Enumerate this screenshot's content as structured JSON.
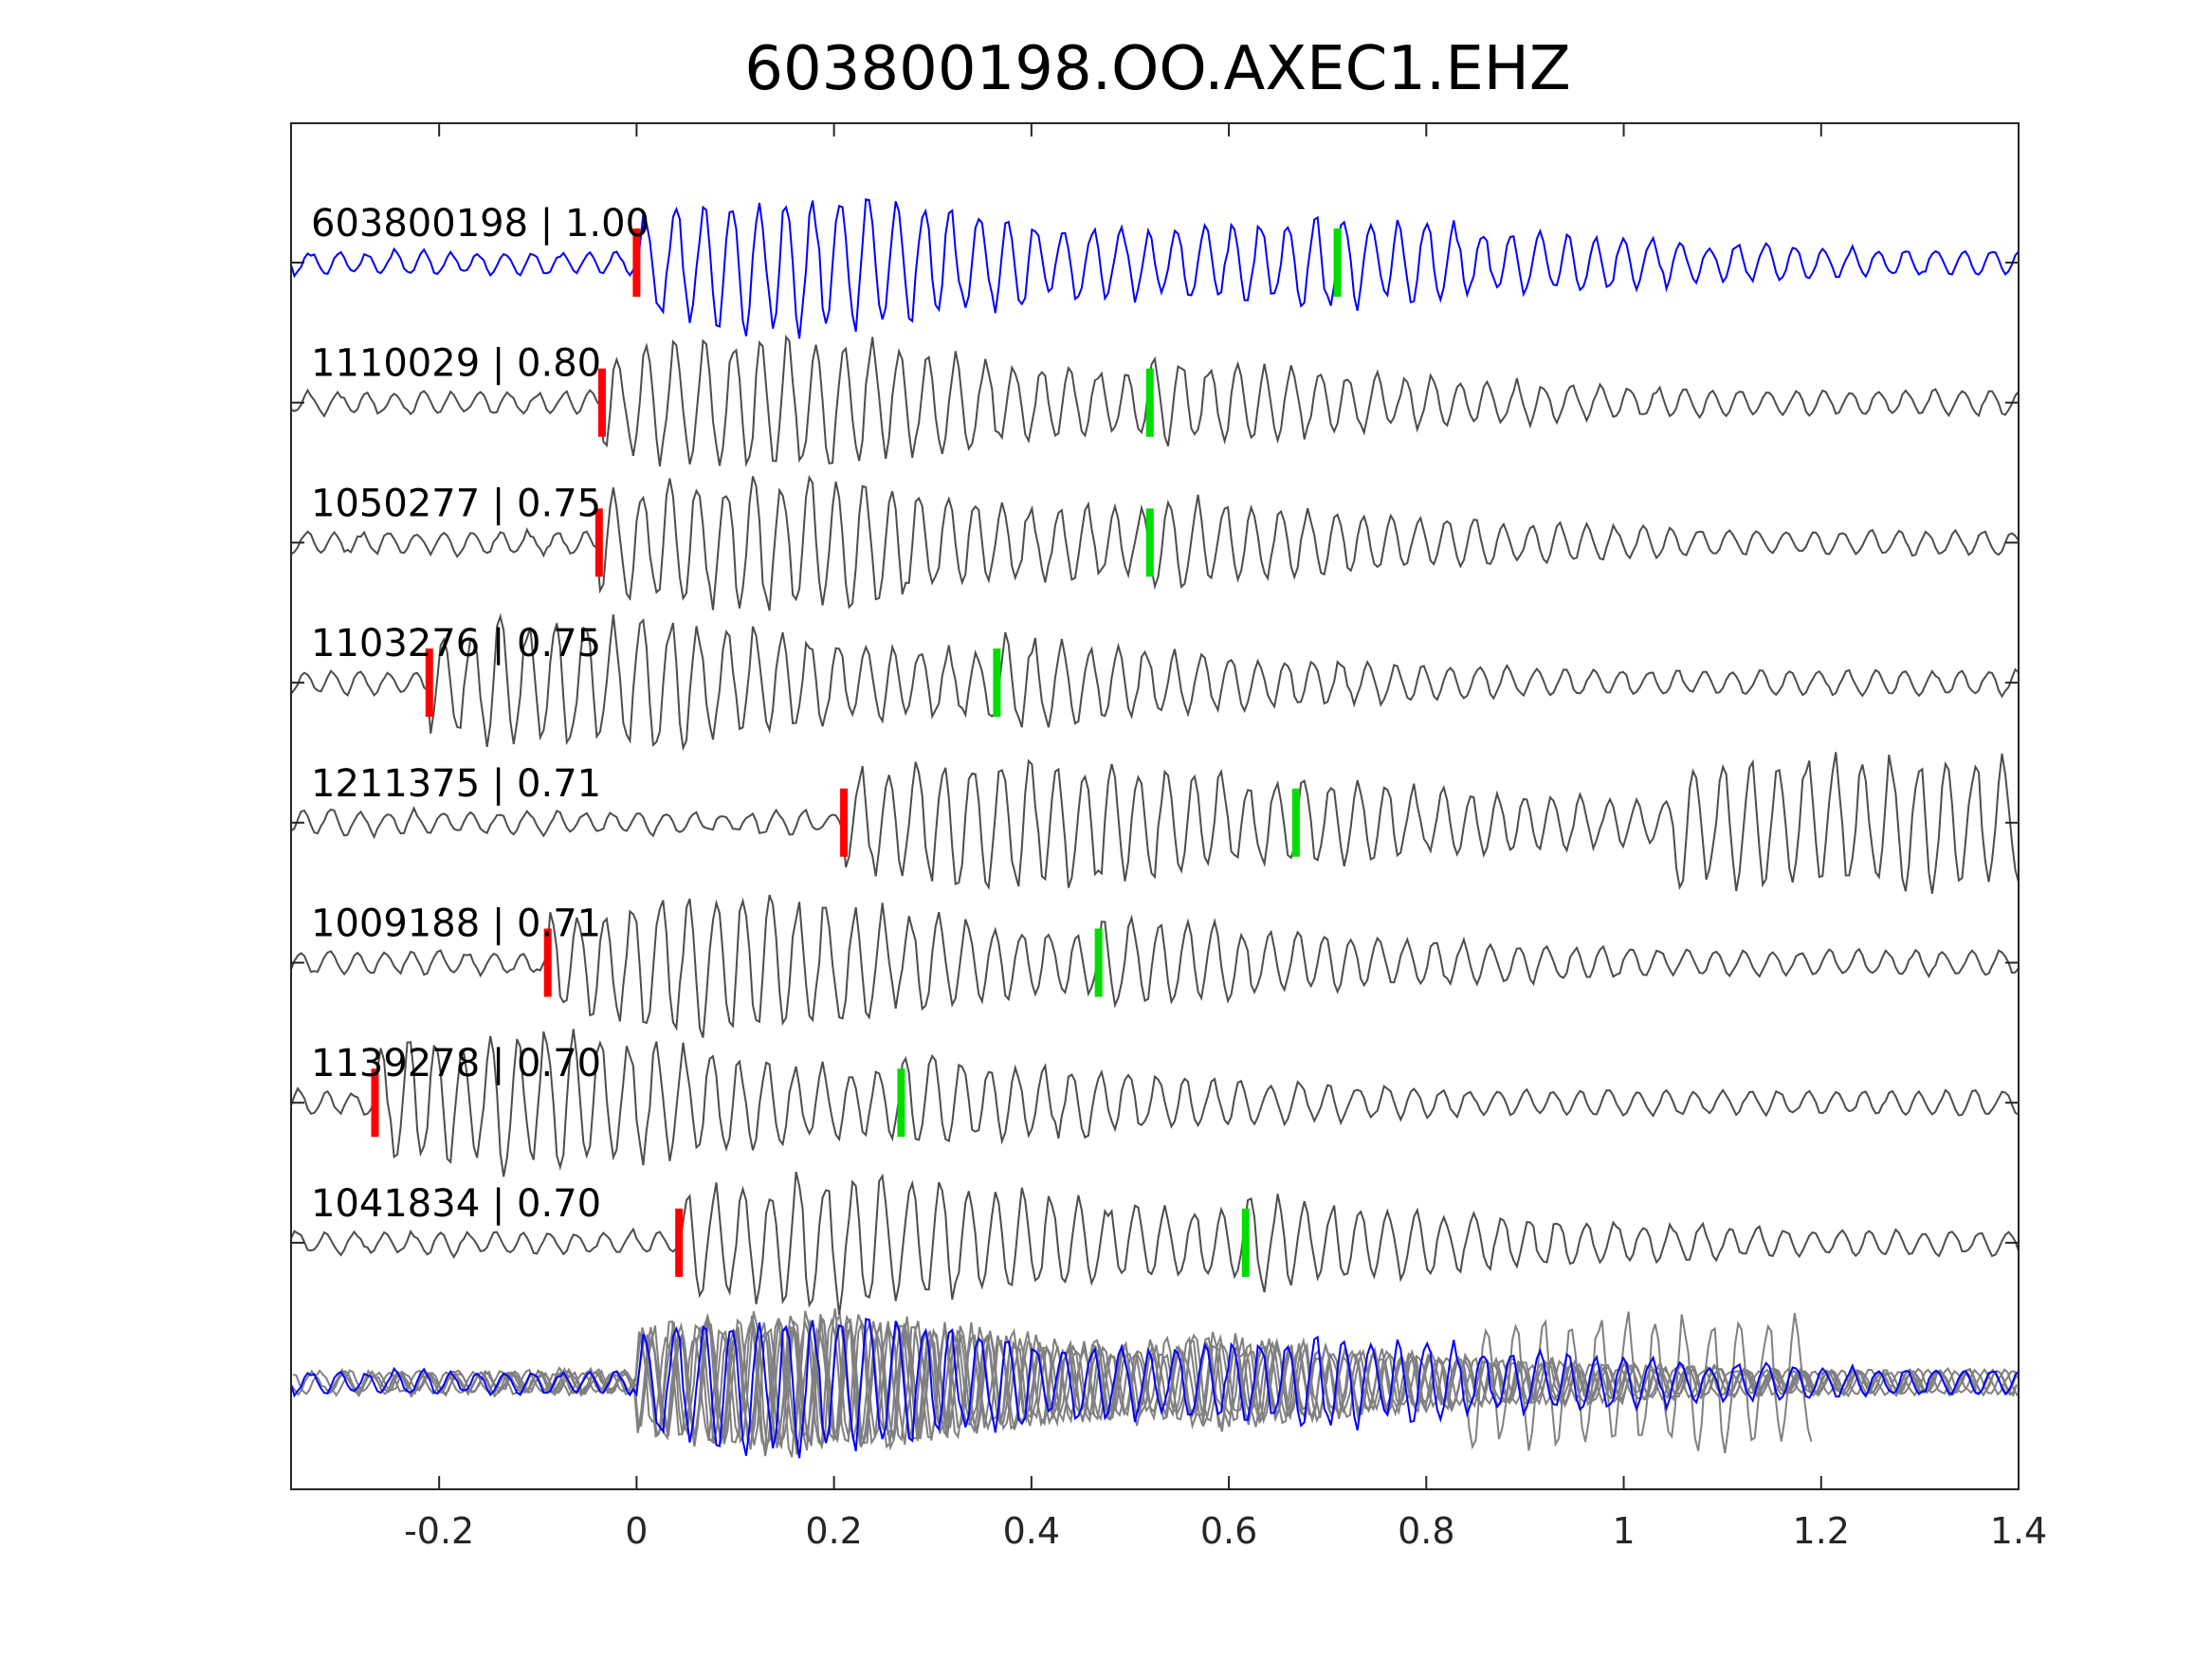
{
  "chart_data": {
    "type": "line",
    "title": "603800198.OO.AXEC1.EHZ",
    "xlabel": "",
    "ylabel": "",
    "xlim": [
      -0.35,
      1.4
    ],
    "xticks": [
      -0.2,
      0,
      0.2,
      0.4,
      0.6,
      0.8,
      1,
      1.2,
      1.4
    ],
    "xtick_labels": [
      "-0.2",
      "0",
      "0.2",
      "0.4",
      "0.6",
      "0.8",
      "1",
      "1.2",
      "1.4"
    ],
    "grid": false,
    "colors": {
      "reference_trace": "#0000ff",
      "matched_trace": "#4d4d4d",
      "stack_trace": "#808080",
      "p_pick": "#ff0000",
      "s_pick": "#00dd00"
    },
    "traces": [
      {
        "label": "603800198 | 1.00",
        "id": "603800198",
        "cc": 1.0,
        "p_pick": 0.0,
        "s_pick": 0.71,
        "color": "#0000ff"
      },
      {
        "label": "1110029 | 0.80",
        "id": "1110029",
        "cc": 0.8,
        "p_pick": -0.035,
        "s_pick": 0.52,
        "color": "#4d4d4d"
      },
      {
        "label": "1050277 | 0.75",
        "id": "1050277",
        "cc": 0.75,
        "p_pick": -0.038,
        "s_pick": 0.52,
        "color": "#4d4d4d"
      },
      {
        "label": "1103276 | 0.75",
        "id": "1103276",
        "cc": 0.75,
        "p_pick": -0.21,
        "s_pick": 0.365,
        "color": "#4d4d4d"
      },
      {
        "label": "1211375 | 0.71",
        "id": "1211375",
        "cc": 0.71,
        "p_pick": 0.21,
        "s_pick": 0.668,
        "color": "#4d4d4d"
      },
      {
        "label": "1009188 | 0.71",
        "id": "1009188",
        "cc": 0.71,
        "p_pick": -0.09,
        "s_pick": 0.468,
        "color": "#4d4d4d"
      },
      {
        "label": "1139278 | 0.70",
        "id": "1139278",
        "cc": 0.7,
        "p_pick": -0.265,
        "s_pick": 0.268,
        "color": "#4d4d4d"
      },
      {
        "label": "1041834 | 0.70",
        "id": "1041834",
        "cc": 0.7,
        "p_pick": 0.043,
        "s_pick": 0.617,
        "color": "#4d4d4d"
      }
    ],
    "stack": {
      "description_color_overlay": "#808080"
    }
  }
}
